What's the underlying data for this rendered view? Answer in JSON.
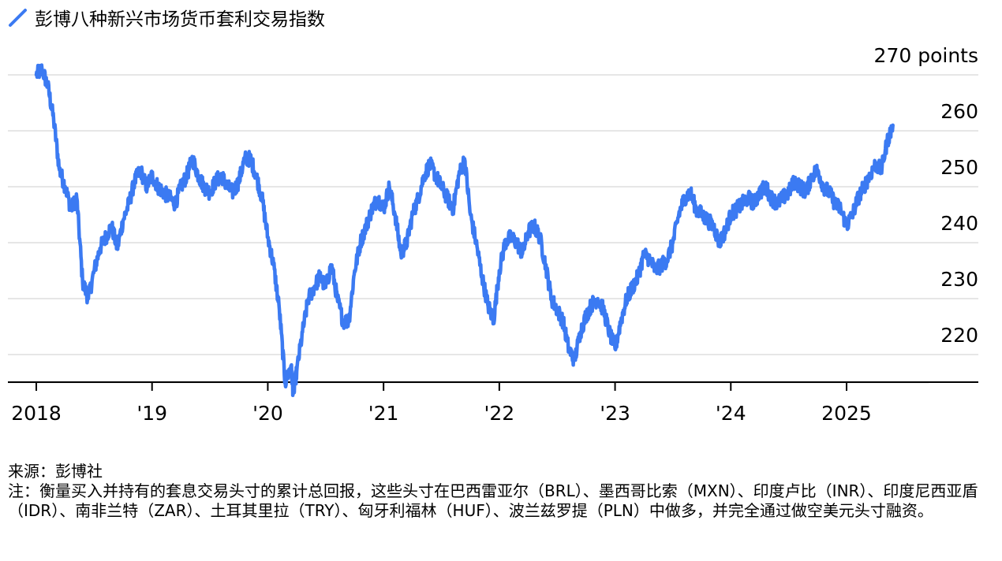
{
  "legend": {
    "label": "彭博八种新兴市场货币套利交易指数",
    "color": "#3b7af2"
  },
  "chart_data": {
    "type": "line",
    "series": [
      {
        "name": "彭博八种新兴市场货币套利交易指数",
        "color": "#3b7af2",
        "x": [
          2018.0,
          2018.05,
          2018.1,
          2018.15,
          2018.2,
          2018.25,
          2018.3,
          2018.35,
          2018.4,
          2018.45,
          2018.5,
          2018.55,
          2018.6,
          2018.65,
          2018.7,
          2018.75,
          2018.8,
          2018.85,
          2018.9,
          2018.95,
          2019.0,
          2019.05,
          2019.1,
          2019.15,
          2019.2,
          2019.25,
          2019.3,
          2019.35,
          2019.4,
          2019.45,
          2019.5,
          2019.55,
          2019.6,
          2019.65,
          2019.7,
          2019.75,
          2019.8,
          2019.85,
          2019.9,
          2019.95,
          2020.0,
          2020.05,
          2020.1,
          2020.15,
          2020.2,
          2020.22,
          2020.25,
          2020.3,
          2020.35,
          2020.4,
          2020.45,
          2020.5,
          2020.55,
          2020.6,
          2020.65,
          2020.7,
          2020.75,
          2020.8,
          2020.85,
          2020.9,
          2020.95,
          2021.0,
          2021.05,
          2021.1,
          2021.15,
          2021.2,
          2021.25,
          2021.3,
          2021.35,
          2021.4,
          2021.45,
          2021.5,
          2021.55,
          2021.6,
          2021.65,
          2021.7,
          2021.75,
          2021.8,
          2021.85,
          2021.9,
          2021.95,
          2022.0,
          2022.05,
          2022.1,
          2022.15,
          2022.2,
          2022.25,
          2022.3,
          2022.35,
          2022.4,
          2022.45,
          2022.5,
          2022.55,
          2022.6,
          2022.65,
          2022.7,
          2022.75,
          2022.8,
          2022.85,
          2022.9,
          2022.95,
          2023.0,
          2023.05,
          2023.1,
          2023.15,
          2023.2,
          2023.25,
          2023.3,
          2023.35,
          2023.4,
          2023.45,
          2023.5,
          2023.55,
          2023.6,
          2023.65,
          2023.7,
          2023.75,
          2023.8,
          2023.85,
          2023.9,
          2023.95,
          2024.0,
          2024.05,
          2024.1,
          2024.15,
          2024.2,
          2024.25,
          2024.3,
          2024.35,
          2024.4,
          2024.45,
          2024.5,
          2024.55,
          2024.6,
          2024.65,
          2024.7,
          2024.75,
          2024.8,
          2024.85,
          2024.9,
          2024.95,
          2025.0,
          2025.05,
          2025.1,
          2025.15,
          2025.2,
          2025.25,
          2025.3,
          2025.35,
          2025.4
        ],
        "y": [
          270,
          271,
          268,
          262,
          253,
          250,
          246,
          248,
          233,
          230,
          235,
          239,
          241,
          243,
          239,
          244,
          247,
          251,
          253,
          250,
          252,
          250,
          249,
          248,
          247,
          250,
          252,
          255,
          252,
          250,
          249,
          251,
          252,
          250,
          249,
          251,
          255,
          255,
          252,
          248,
          241,
          236,
          228,
          215,
          218,
          213,
          217,
          224,
          230,
          232,
          234,
          232,
          236,
          230,
          226,
          226,
          235,
          240,
          243,
          246,
          248,
          246,
          250,
          245,
          238,
          240,
          245,
          248,
          252,
          254,
          252,
          250,
          248,
          246,
          252,
          255,
          245,
          240,
          234,
          229,
          226,
          235,
          240,
          241,
          240,
          238,
          242,
          243,
          241,
          236,
          230,
          228,
          226,
          221,
          219,
          224,
          227,
          229,
          230,
          228,
          224,
          221,
          226,
          230,
          232,
          234,
          238,
          237,
          235,
          236,
          237,
          240,
          245,
          248,
          249,
          246,
          245,
          244,
          243,
          240,
          242,
          245,
          246,
          247,
          248,
          247,
          249,
          250,
          248,
          247,
          248,
          249,
          251,
          250,
          249,
          252,
          253,
          250,
          249,
          247,
          246,
          243,
          245,
          248,
          250,
          252,
          254,
          253,
          258,
          261
        ],
        "wiggle": 1.4
      }
    ],
    "xticks": [
      {
        "value": 2018,
        "label": "2018"
      },
      {
        "value": 2019,
        "label": "'19"
      },
      {
        "value": 2020,
        "label": "'20"
      },
      {
        "value": 2021,
        "label": "'21"
      },
      {
        "value": 2022,
        "label": "'22"
      },
      {
        "value": 2023,
        "label": "'23"
      },
      {
        "value": 2024,
        "label": "'24"
      },
      {
        "value": 2025,
        "label": "2025"
      }
    ],
    "yticks": [
      {
        "value": 270,
        "label": "270 points"
      },
      {
        "value": 260,
        "label": "260"
      },
      {
        "value": 250,
        "label": "250"
      },
      {
        "value": 240,
        "label": "240"
      },
      {
        "value": 230,
        "label": "230"
      },
      {
        "value": 220,
        "label": "220"
      }
    ],
    "ylim": [
      209.5,
      272.5
    ],
    "xlim": [
      2018.0,
      2025.3
    ],
    "grid": true,
    "grid_color": "#e6e6e6",
    "axis_color": "#000000"
  },
  "footer": {
    "source": "来源：彭博社",
    "note": "注：衡量买入并持有的套息交易头寸的累计总回报，这些头寸在巴西雷亚尔（BRL）、墨西哥比索（MXN）、印度卢比（INR）、印度尼西亚盾（IDR）、南非兰特（ZAR）、土耳其里拉（TRY）、匈牙利福林（HUF）、波兰兹罗提（PLN）中做多，并完全通过做空美元头寸融资。"
  }
}
